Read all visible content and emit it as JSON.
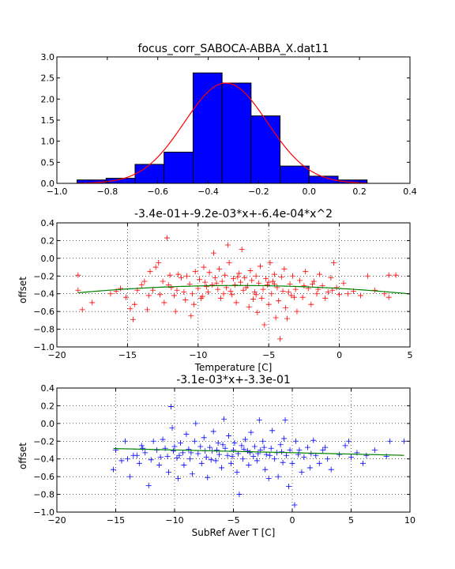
{
  "chart_data": [
    {
      "type": "bar",
      "title": "focus_corr_SABOCA-ABBA_X.dat11",
      "xlabel": "",
      "ylabel": "",
      "xlim": [
        -1.0,
        0.4
      ],
      "ylim": [
        0.0,
        3.0
      ],
      "xticks": [
        "−1.0",
        "−0.8",
        "−0.6",
        "−0.4",
        "−0.2",
        "0.0",
        "0.2",
        "0.4"
      ],
      "yticks": [
        "0.0",
        "0.5",
        "1.0",
        "1.5",
        "2.0",
        "2.5",
        "3.0"
      ],
      "bins": [
        {
          "left": -0.92,
          "right": -0.805,
          "value": 0.08
        },
        {
          "left": -0.805,
          "right": -0.69,
          "value": 0.12
        },
        {
          "left": -0.69,
          "right": -0.575,
          "value": 0.45
        },
        {
          "left": -0.575,
          "right": -0.46,
          "value": 0.74
        },
        {
          "left": -0.46,
          "right": -0.345,
          "value": 2.62
        },
        {
          "left": -0.345,
          "right": -0.23,
          "value": 2.38
        },
        {
          "left": -0.23,
          "right": -0.115,
          "value": 1.6
        },
        {
          "left": -0.115,
          "right": 0.0,
          "value": 0.41
        },
        {
          "left": 0.0,
          "right": 0.115,
          "value": 0.17
        },
        {
          "left": 0.115,
          "right": 0.23,
          "value": 0.08
        }
      ],
      "fit": {
        "type": "gaussian",
        "mean": -0.33,
        "sigma": 0.165,
        "amplitude": 2.38
      },
      "bar_color": "#0000ff",
      "fit_color": "#ff0000",
      "grid": false
    },
    {
      "type": "scatter",
      "title": "-3.4e-01+-9.2e-03*x+-6.4e-04*x^2",
      "xlabel": "Temperature [C]",
      "ylabel": "offset",
      "xlim": [
        -20,
        5
      ],
      "ylim": [
        -1.0,
        0.4
      ],
      "xticks": [
        "−20",
        "−15",
        "−10",
        "−5",
        "0",
        "5"
      ],
      "yticks": [
        "−1.0",
        "−0.8",
        "−0.6",
        "−0.4",
        "−0.2",
        "0.0",
        "0.2",
        "0.4"
      ],
      "marker_color": "#ff0000",
      "fit_color": "#008000",
      "fit": {
        "coefficients": [
          -0.34,
          -0.0092,
          -0.00064
        ],
        "xrange": [
          -18.5,
          5
        ]
      },
      "grid": true,
      "points": [
        [
          -18.5,
          -0.19
        ],
        [
          -18.5,
          -0.36
        ],
        [
          -18.2,
          -0.58
        ],
        [
          -17.5,
          -0.5
        ],
        [
          -16.2,
          -0.4
        ],
        [
          -15.8,
          -0.37
        ],
        [
          -15.5,
          -0.34
        ],
        [
          -15.1,
          -0.44
        ],
        [
          -14.8,
          -0.57
        ],
        [
          -14.6,
          -0.69
        ],
        [
          -14.5,
          -0.52
        ],
        [
          -14.3,
          -0.36
        ],
        [
          -14.0,
          -0.3
        ],
        [
          -13.8,
          -0.26
        ],
        [
          -13.6,
          -0.58
        ],
        [
          -13.4,
          -0.15
        ],
        [
          -13.2,
          -0.36
        ],
        [
          -13.0,
          -0.1
        ],
        [
          -12.8,
          -0.05
        ],
        [
          -12.7,
          -0.41
        ],
        [
          -12.5,
          -0.26
        ],
        [
          -12.4,
          -0.5
        ],
        [
          -12.2,
          0.23
        ],
        [
          -12.0,
          -0.19
        ],
        [
          -11.9,
          -0.33
        ],
        [
          -11.7,
          -0.42
        ],
        [
          -11.6,
          -0.6
        ],
        [
          -11.4,
          -0.18
        ],
        [
          -11.2,
          -0.22
        ],
        [
          -11.0,
          -0.38
        ],
        [
          -10.9,
          -0.47
        ],
        [
          -10.8,
          -0.2
        ],
        [
          -10.6,
          -0.29
        ],
        [
          -10.5,
          -0.65
        ],
        [
          -10.3,
          -0.52
        ],
        [
          -10.2,
          -0.15
        ],
        [
          -10.0,
          -0.34
        ],
        [
          -9.9,
          -0.24
        ],
        [
          -9.7,
          -0.43
        ],
        [
          -9.6,
          -0.1
        ],
        [
          -9.5,
          -0.27
        ],
        [
          -9.3,
          -0.38
        ],
        [
          -9.2,
          -0.16
        ],
        [
          -9.0,
          -0.3
        ],
        [
          -8.9,
          0.06
        ],
        [
          -8.8,
          -0.22
        ],
        [
          -8.6,
          -0.35
        ],
        [
          -8.5,
          -0.12
        ],
        [
          -8.4,
          -0.45
        ],
        [
          -8.3,
          -0.26
        ],
        [
          -8.1,
          -0.19
        ],
        [
          -8.0,
          -0.33
        ],
        [
          -7.9,
          0.15
        ],
        [
          -7.8,
          -0.05
        ],
        [
          -7.6,
          -0.41
        ],
        [
          -7.5,
          -0.23
        ],
        [
          -7.4,
          -0.3
        ],
        [
          -7.3,
          -0.5
        ],
        [
          -7.1,
          -0.17
        ],
        [
          -7.0,
          -0.27
        ],
        [
          -6.9,
          0.1
        ],
        [
          -6.8,
          -0.36
        ],
        [
          -6.7,
          -0.22
        ],
        [
          -6.5,
          -0.31
        ],
        [
          -6.4,
          -0.55
        ],
        [
          -6.3,
          -0.14
        ],
        [
          -6.2,
          -0.25
        ],
        [
          -6.0,
          -0.38
        ],
        [
          -5.9,
          -0.2
        ],
        [
          -5.8,
          -0.61
        ],
        [
          -5.7,
          -0.28
        ],
        [
          -5.6,
          -0.09
        ],
        [
          -5.5,
          -0.45
        ],
        [
          -5.4,
          -0.35
        ],
        [
          -5.3,
          -0.75
        ],
        [
          -5.2,
          -0.23
        ],
        [
          -5.1,
          -0.3
        ],
        [
          -5.0,
          -0.52
        ],
        [
          -4.9,
          -0.05
        ],
        [
          -4.8,
          -0.4
        ],
        [
          -4.7,
          -0.26
        ],
        [
          -4.6,
          -0.18
        ],
        [
          -4.5,
          -0.67
        ],
        [
          -4.4,
          -0.33
        ],
        [
          -4.3,
          -0.48
        ],
        [
          -4.2,
          -0.91
        ],
        [
          -4.1,
          -0.21
        ],
        [
          -4.0,
          -0.37
        ],
        [
          -3.9,
          -0.12
        ],
        [
          -3.8,
          -0.56
        ],
        [
          -3.7,
          -0.68
        ],
        [
          -3.5,
          -0.29
        ],
        [
          -3.4,
          -0.42
        ],
        [
          -3.3,
          -0.2
        ],
        [
          -3.1,
          -0.35
        ],
        [
          -3.0,
          -0.6
        ],
        [
          -2.8,
          -0.25
        ],
        [
          -2.6,
          -0.44
        ],
        [
          -2.4,
          -0.15
        ],
        [
          -2.2,
          -0.34
        ],
        [
          -2.0,
          -0.52
        ],
        [
          -1.8,
          -0.26
        ],
        [
          -1.6,
          -0.4
        ],
        [
          -1.4,
          -0.18
        ],
        [
          -1.2,
          -0.31
        ],
        [
          -1.0,
          -0.45
        ],
        [
          -0.8,
          -0.38
        ],
        [
          -0.6,
          -0.22
        ],
        [
          -0.4,
          -0.05
        ],
        [
          -0.2,
          -0.33
        ],
        [
          0.0,
          -0.41
        ],
        [
          0.3,
          -0.28
        ],
        [
          0.6,
          -0.4
        ],
        [
          1.0,
          -0.37
        ],
        [
          1.5,
          -0.42
        ],
        [
          2.0,
          -0.2
        ],
        [
          2.5,
          -0.36
        ],
        [
          3.2,
          -0.4
        ],
        [
          3.5,
          -0.44
        ],
        [
          3.5,
          -0.19
        ],
        [
          4.0,
          -0.19
        ],
        [
          -11.5,
          -0.36
        ],
        [
          -10.4,
          -0.4
        ],
        [
          -9.4,
          -0.32
        ],
        [
          -8.7,
          -0.28
        ],
        [
          -7.7,
          -0.37
        ],
        [
          -6.6,
          -0.33
        ],
        [
          -5.9,
          -0.41
        ],
        [
          -4.6,
          -0.29
        ],
        [
          -3.6,
          -0.38
        ],
        [
          -2.5,
          -0.31
        ],
        [
          -1.5,
          -0.35
        ],
        [
          -0.5,
          -0.36
        ],
        [
          -13.5,
          -0.42
        ],
        [
          -12.1,
          -0.3
        ],
        [
          -9.8,
          -0.45
        ],
        [
          -8.2,
          -0.4
        ],
        [
          -7.2,
          -0.21
        ],
        [
          -6.1,
          -0.46
        ],
        [
          -5.0,
          -0.27
        ],
        [
          -3.2,
          -0.44
        ],
        [
          -1.9,
          -0.29
        ]
      ]
    },
    {
      "type": "scatter",
      "title": "-3.1e-03*x+-3.3e-01",
      "xlabel": "SubRef Aver T [C]",
      "ylabel": "offset",
      "xlim": [
        -20,
        10
      ],
      "ylim": [
        -1.0,
        0.4
      ],
      "xticks": [
        "−20",
        "−15",
        "−10",
        "−5",
        "0",
        "5",
        "10"
      ],
      "yticks": [
        "−1.0",
        "−0.8",
        "−0.6",
        "−0.4",
        "−0.2",
        "0.0",
        "0.2",
        "0.4"
      ],
      "marker_color": "#0000ff",
      "fit_color": "#008000",
      "fit": {
        "coefficients": [
          -0.33,
          -0.0031
        ],
        "xrange": [
          -15.2,
          9.5
        ]
      },
      "grid": true,
      "points": [
        [
          -15.2,
          -0.52
        ],
        [
          -15.0,
          -0.3
        ],
        [
          -14.5,
          -0.42
        ],
        [
          -14.2,
          -0.2
        ],
        [
          -13.8,
          -0.6
        ],
        [
          -13.5,
          -0.36
        ],
        [
          -13.0,
          -0.45
        ],
        [
          -12.8,
          -0.25
        ],
        [
          -12.5,
          -0.33
        ],
        [
          -12.2,
          -0.7
        ],
        [
          -12.0,
          -0.41
        ],
        [
          -11.8,
          -0.2
        ],
        [
          -11.5,
          -0.3
        ],
        [
          -11.3,
          -0.47
        ],
        [
          -11.0,
          -0.18
        ],
        [
          -10.8,
          -0.28
        ],
        [
          -10.6,
          -0.37
        ],
        [
          -10.5,
          -0.55
        ],
        [
          -10.3,
          0.19
        ],
        [
          -10.2,
          -0.05
        ],
        [
          -10.0,
          -0.26
        ],
        [
          -9.8,
          -0.39
        ],
        [
          -9.7,
          -0.62
        ],
        [
          -9.5,
          -0.22
        ],
        [
          -9.3,
          -0.33
        ],
        [
          -9.2,
          -0.47
        ],
        [
          -9.0,
          -0.12
        ],
        [
          -8.8,
          -0.29
        ],
        [
          -8.7,
          -0.4
        ],
        [
          -8.5,
          -0.57
        ],
        [
          -8.3,
          -0.2
        ],
        [
          -8.2,
          0.0
        ],
        [
          -8.0,
          -0.34
        ],
        [
          -7.8,
          -0.26
        ],
        [
          -7.7,
          -0.45
        ],
        [
          -7.5,
          -0.16
        ],
        [
          -7.3,
          -0.38
        ],
        [
          -7.2,
          -0.61
        ],
        [
          -7.0,
          -0.27
        ],
        [
          -6.8,
          -0.31
        ],
        [
          -6.7,
          -0.09
        ],
        [
          -6.5,
          -0.42
        ],
        [
          -6.3,
          -0.22
        ],
        [
          -6.2,
          -0.35
        ],
        [
          -6.0,
          -0.5
        ],
        [
          -5.8,
          0.05
        ],
        [
          -5.7,
          -0.28
        ],
        [
          -5.5,
          -0.36
        ],
        [
          -5.4,
          -0.14
        ],
        [
          -5.2,
          -0.45
        ],
        [
          -5.0,
          -0.3
        ],
        [
          -4.9,
          -0.22
        ],
        [
          -4.7,
          -0.55
        ],
        [
          -4.6,
          -0.34
        ],
        [
          -4.5,
          -0.8
        ],
        [
          -4.3,
          -0.25
        ],
        [
          -4.2,
          -0.4
        ],
        [
          -4.0,
          -0.18
        ],
        [
          -3.8,
          -0.31
        ],
        [
          -3.7,
          -0.47
        ],
        [
          -3.5,
          -0.1
        ],
        [
          -3.3,
          -0.37
        ],
        [
          -3.2,
          -0.26
        ],
        [
          -3.0,
          -0.42
        ],
        [
          -2.8,
          0.04
        ],
        [
          -2.7,
          -0.3
        ],
        [
          -2.5,
          -0.2
        ],
        [
          -2.3,
          -0.52
        ],
        [
          -2.2,
          -0.35
        ],
        [
          -2.0,
          -0.62
        ],
        [
          -1.8,
          -0.28
        ],
        [
          -1.7,
          -0.08
        ],
        [
          -1.5,
          -0.4
        ],
        [
          -1.3,
          -0.33
        ],
        [
          -1.2,
          -0.6
        ],
        [
          -1.0,
          -0.24
        ],
        [
          -0.8,
          -0.44
        ],
        [
          -0.7,
          -0.17
        ],
        [
          -0.5,
          -0.36
        ],
        [
          -0.3,
          -0.71
        ],
        [
          -0.2,
          -0.3
        ],
        [
          0.0,
          -0.45
        ],
        [
          0.2,
          -0.92
        ],
        [
          0.3,
          -0.2
        ],
        [
          0.5,
          -0.35
        ],
        [
          0.8,
          -0.55
        ],
        [
          1.0,
          -0.38
        ],
        [
          1.3,
          -0.27
        ],
        [
          1.5,
          -0.5
        ],
        [
          1.8,
          -0.19
        ],
        [
          2.0,
          -0.36
        ],
        [
          2.3,
          -0.45
        ],
        [
          2.6,
          -0.3
        ],
        [
          3.0,
          -0.4
        ],
        [
          3.3,
          -0.52
        ],
        [
          4.0,
          -0.35
        ],
        [
          4.5,
          -0.25
        ],
        [
          4.8,
          -0.2
        ],
        [
          5.0,
          -0.38
        ],
        [
          5.5,
          -0.33
        ],
        [
          6.0,
          -0.45
        ],
        [
          6.3,
          -0.36
        ],
        [
          7.0,
          -0.3
        ],
        [
          8.0,
          -0.37
        ],
        [
          8.3,
          -0.2
        ],
        [
          9.5,
          -0.2
        ],
        [
          -0.6,
          0.04
        ],
        [
          -14.0,
          -0.4
        ],
        [
          -11.2,
          -0.38
        ],
        [
          -9.6,
          -0.36
        ],
        [
          -8.6,
          -0.33
        ],
        [
          -7.4,
          -0.31
        ],
        [
          -6.4,
          -0.3
        ],
        [
          -5.1,
          -0.37
        ],
        [
          -4.1,
          -0.29
        ],
        [
          -2.9,
          -0.34
        ],
        [
          -1.9,
          -0.36
        ],
        [
          -0.9,
          -0.32
        ],
        [
          0.6,
          -0.3
        ],
        [
          1.6,
          -0.34
        ],
        [
          -12.7,
          -0.28
        ],
        [
          -10.1,
          -0.31
        ],
        [
          -6.9,
          -0.41
        ],
        [
          -3.6,
          -0.33
        ],
        [
          2.8,
          -0.27
        ],
        [
          -5.9,
          -0.24
        ],
        [
          -2.4,
          -0.27
        ],
        [
          -13.2,
          -0.36
        ]
      ]
    }
  ]
}
